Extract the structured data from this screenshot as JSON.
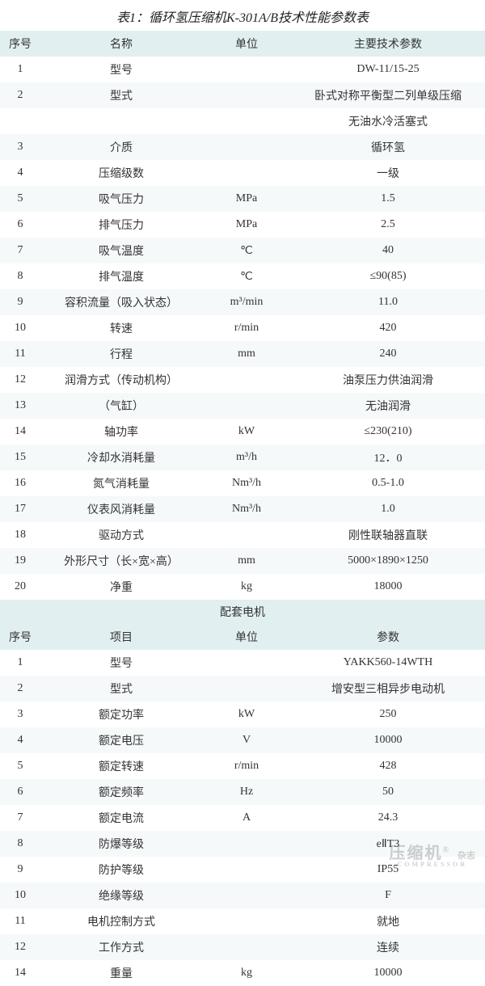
{
  "title": "表1：循环氢压缩机K-301A/B技术性能参数表",
  "table1": {
    "headers": {
      "seq": "序号",
      "name": "名称",
      "unit": "单位",
      "param": "主要技术参数"
    },
    "rows": [
      {
        "seq": "1",
        "name": "型号",
        "unit": "",
        "param": "DW-11/15-25"
      },
      {
        "seq": "2",
        "name": "型式",
        "unit": "",
        "param": "卧式对称平衡型二列单级压缩"
      },
      {
        "seq": "",
        "name": "",
        "unit": "",
        "param": "无油水冷活塞式"
      },
      {
        "seq": "3",
        "name": "介质",
        "unit": "",
        "param": "循环氢"
      },
      {
        "seq": "4",
        "name": "压缩级数",
        "unit": "",
        "param": "一级"
      },
      {
        "seq": "5",
        "name": "吸气压力",
        "unit": "MPa",
        "param": "1.5"
      },
      {
        "seq": "6",
        "name": "排气压力",
        "unit": "MPa",
        "param": "2.5"
      },
      {
        "seq": "7",
        "name": "吸气温度",
        "unit": "℃",
        "param": "40"
      },
      {
        "seq": "8",
        "name": "排气温度",
        "unit": "℃",
        "param": "≤90(85)"
      },
      {
        "seq": "9",
        "name": "容积流量（吸入状态）",
        "unit": "m³/min",
        "param": "11.0"
      },
      {
        "seq": "10",
        "name": "转速",
        "unit": "r/min",
        "param": "420"
      },
      {
        "seq": "11",
        "name": "行程",
        "unit": "mm",
        "param": "240"
      },
      {
        "seq": "12",
        "name": "润滑方式（传动机构）",
        "unit": "",
        "param": "油泵压力供油润滑"
      },
      {
        "seq": "13",
        "name": "（气缸）",
        "unit": "",
        "param": "无油润滑"
      },
      {
        "seq": "14",
        "name": "轴功率",
        "unit": "kW",
        "param": "≤230(210)"
      },
      {
        "seq": "15",
        "name": "冷却水消耗量",
        "unit": "m³/h",
        "param": "12．0"
      },
      {
        "seq": "16",
        "name": "氮气消耗量",
        "unit": "Nm³/h",
        "param": "0.5-1.0"
      },
      {
        "seq": "17",
        "name": "仪表风消耗量",
        "unit": "Nm³/h",
        "param": "1.0"
      },
      {
        "seq": "18",
        "name": "驱动方式",
        "unit": "",
        "param": "刚性联轴器直联"
      },
      {
        "seq": "19",
        "name": "外形尺寸（长×宽×高）",
        "unit": "mm",
        "param": "5000×1890×1250"
      },
      {
        "seq": "20",
        "name": "净重",
        "unit": "kg",
        "param": "18000"
      }
    ]
  },
  "section_label": "配套电机",
  "table2": {
    "headers": {
      "seq": "序号",
      "name": "项目",
      "unit": "单位",
      "param": "参数"
    },
    "rows": [
      {
        "seq": "1",
        "name": "型号",
        "unit": "",
        "param": "YAKK560-14WTH"
      },
      {
        "seq": "2",
        "name": "型式",
        "unit": "",
        "param": "增安型三相异步电动机"
      },
      {
        "seq": "3",
        "name": "额定功率",
        "unit": "kW",
        "param": "250"
      },
      {
        "seq": "4",
        "name": "额定电压",
        "unit": "V",
        "param": "10000"
      },
      {
        "seq": "5",
        "name": "额定转速",
        "unit": "r/min",
        "param": "428"
      },
      {
        "seq": "6",
        "name": "额定频率",
        "unit": "Hz",
        "param": "50"
      },
      {
        "seq": "7",
        "name": "额定电流",
        "unit": "A",
        "param": "24.3"
      },
      {
        "seq": "8",
        "name": "防爆等级",
        "unit": "",
        "param": "eⅡT3"
      },
      {
        "seq": "9",
        "name": "防护等级",
        "unit": "",
        "param": "IP55"
      },
      {
        "seq": "10",
        "name": "绝缘等级",
        "unit": "",
        "param": "F"
      },
      {
        "seq": "11",
        "name": "电机控制方式",
        "unit": "",
        "param": "就地"
      },
      {
        "seq": "12",
        "name": "工作方式",
        "unit": "",
        "param": "连续"
      },
      {
        "seq": "14",
        "name": "重量",
        "unit": "kg",
        "param": "10000"
      }
    ]
  },
  "watermark": {
    "main": "压缩机",
    "reg": "®",
    "sub": "COMPRESSOR",
    "side": "杂志"
  },
  "colors": {
    "header_bg": "#e1eff0",
    "row_alt_bg": "#f5f9fa",
    "text": "#333333"
  }
}
